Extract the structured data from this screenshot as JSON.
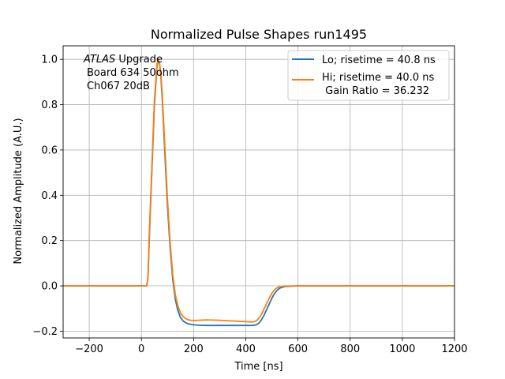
{
  "chart_data": {
    "type": "line",
    "title": "Normalized Pulse Shapes run1495",
    "xlabel": "Time [ns]",
    "ylabel": "Normalized Amplitude (A.U.)",
    "xlim": [
      -300,
      1200
    ],
    "ylim": [
      -0.23,
      1.06
    ],
    "xticks": [
      -200,
      0,
      200,
      400,
      600,
      800,
      1000,
      1200
    ],
    "yticks": [
      -0.2,
      0.0,
      0.2,
      0.4,
      0.6,
      0.8,
      1.0
    ],
    "xtick_labels": [
      "−200",
      "0",
      "200",
      "400",
      "600",
      "800",
      "1000",
      "1200"
    ],
    "ytick_labels": [
      "−0.2",
      "0.0",
      "0.2",
      "0.4",
      "0.6",
      "0.8",
      "1.0"
    ],
    "grid": true,
    "legend_position": "top-right",
    "annotation": {
      "italic": "ATLAS",
      "line1_rest": " Upgrade",
      "line2": "Board 634 50ohm",
      "line3": "Ch067 20dB"
    },
    "series": [
      {
        "name": "Lo; risetime = 40.8 ns",
        "color": "#1f77b4",
        "x": [
          -300,
          0,
          20,
          25,
          30,
          40,
          50,
          60,
          65,
          70,
          75,
          80,
          90,
          100,
          110,
          120,
          130,
          140,
          150,
          160,
          170,
          180,
          190,
          200,
          220,
          250,
          300,
          350,
          400,
          425,
          440,
          450,
          460,
          470,
          480,
          490,
          500,
          510,
          520,
          530,
          550,
          600,
          700,
          800,
          1000,
          1200
        ],
        "y": [
          0.0,
          0.0,
          0.0,
          0.03,
          0.2,
          0.5,
          0.8,
          0.97,
          1.0,
          0.98,
          0.92,
          0.82,
          0.58,
          0.35,
          0.17,
          0.03,
          -0.06,
          -0.11,
          -0.14,
          -0.155,
          -0.163,
          -0.168,
          -0.17,
          -0.172,
          -0.174,
          -0.175,
          -0.175,
          -0.175,
          -0.175,
          -0.175,
          -0.172,
          -0.165,
          -0.15,
          -0.13,
          -0.105,
          -0.08,
          -0.055,
          -0.035,
          -0.02,
          -0.01,
          -0.003,
          0.0,
          0.0,
          0.0,
          0.0,
          0.0
        ]
      },
      {
        "name": "Hi; risetime = 40.0 ns\n Gain Ratio = 36.232",
        "color": "#ff7f0e",
        "x": [
          -300,
          0,
          20,
          25,
          30,
          40,
          50,
          60,
          65,
          70,
          75,
          80,
          90,
          100,
          110,
          120,
          130,
          140,
          150,
          160,
          170,
          180,
          190,
          200,
          220,
          250,
          300,
          350,
          400,
          425,
          435,
          445,
          455,
          465,
          475,
          485,
          495,
          505,
          515,
          525,
          550,
          600,
          700,
          800,
          1000,
          1200
        ],
        "y": [
          0.0,
          0.0,
          0.0,
          0.03,
          0.22,
          0.52,
          0.82,
          0.98,
          1.0,
          0.98,
          0.93,
          0.84,
          0.61,
          0.38,
          0.19,
          0.05,
          -0.04,
          -0.09,
          -0.12,
          -0.135,
          -0.145,
          -0.15,
          -0.152,
          -0.153,
          -0.152,
          -0.15,
          -0.152,
          -0.155,
          -0.158,
          -0.16,
          -0.158,
          -0.15,
          -0.135,
          -0.115,
          -0.09,
          -0.065,
          -0.043,
          -0.025,
          -0.012,
          -0.005,
          -0.001,
          0.0,
          0.0,
          0.0,
          0.0,
          0.0
        ]
      }
    ]
  }
}
